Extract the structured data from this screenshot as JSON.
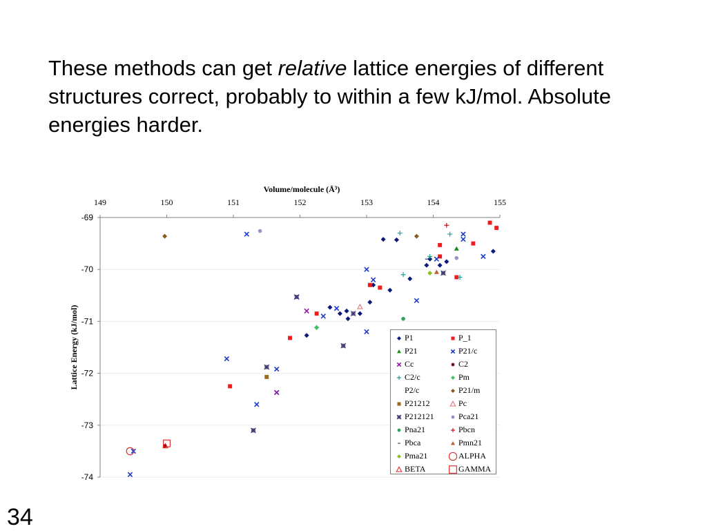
{
  "slide": {
    "text_before": "These methods can get ",
    "text_italic": "relative",
    "text_after": " lattice energies of different structures correct, probably to within a few kJ/mol. Absolute energies harder.",
    "page_number": "34"
  },
  "chart_data": {
    "type": "scatter",
    "title": "",
    "xlabel": "Volume/molecule (Å³)",
    "ylabel": "Lattice Energy (kJ/mol)",
    "xlim": [
      149,
      155
    ],
    "ylim": [
      -74,
      -69
    ],
    "x_ticks": [
      "149",
      "150",
      "151",
      "152",
      "153",
      "154",
      "155"
    ],
    "y_ticks": [
      "-69",
      "-70",
      "-71",
      "-72",
      "-73",
      "-74"
    ],
    "x_axis_position": "top",
    "grid": "horizontal",
    "legend_position": "bottom-right",
    "series": [
      {
        "name": "P1",
        "marker": "diamond",
        "color": "#0a1a7a",
        "points": [
          [
            153.25,
            -69.42
          ],
          [
            153.45,
            -69.43
          ],
          [
            152.1,
            -71.27
          ],
          [
            152.45,
            -70.73
          ],
          [
            152.6,
            -70.85
          ],
          [
            152.7,
            -70.8
          ],
          [
            152.72,
            -70.95
          ],
          [
            153.05,
            -70.63
          ],
          [
            153.35,
            -70.4
          ],
          [
            153.65,
            -70.18
          ],
          [
            153.95,
            -69.8
          ],
          [
            153.9,
            -69.92
          ],
          [
            154.1,
            -69.92
          ],
          [
            154.2,
            -69.85
          ],
          [
            154.9,
            -69.65
          ],
          [
            152.9,
            -70.85
          ],
          [
            153.1,
            -70.3
          ]
        ]
      },
      {
        "name": "P_1",
        "marker": "square",
        "color": "#ee1c1c",
        "points": [
          [
            154.85,
            -69.1
          ],
          [
            154.95,
            -69.2
          ],
          [
            154.6,
            -69.5
          ],
          [
            154.1,
            -69.53
          ],
          [
            154.1,
            -69.75
          ],
          [
            153.05,
            -70.3
          ],
          [
            153.2,
            -70.35
          ],
          [
            152.25,
            -70.85
          ],
          [
            151.85,
            -71.32
          ],
          [
            150.95,
            -72.25
          ],
          [
            154.35,
            -70.15
          ]
        ]
      },
      {
        "name": "P21",
        "marker": "triangle",
        "color": "#1a8a1a",
        "points": [
          [
            154.35,
            -69.6
          ]
        ]
      },
      {
        "name": "P21/c",
        "marker": "x",
        "color": "#1a3acb",
        "points": [
          [
            153.0,
            -70.0
          ],
          [
            153.1,
            -70.2
          ],
          [
            154.05,
            -69.8
          ],
          [
            154.45,
            -69.32
          ],
          [
            154.45,
            -69.42
          ],
          [
            154.75,
            -69.75
          ],
          [
            152.35,
            -70.9
          ],
          [
            152.55,
            -70.75
          ],
          [
            153.0,
            -71.2
          ],
          [
            153.75,
            -70.6
          ],
          [
            151.2,
            -69.32
          ],
          [
            150.9,
            -71.72
          ],
          [
            151.65,
            -71.92
          ],
          [
            151.35,
            -72.6
          ],
          [
            151.65,
            -72.37
          ],
          [
            149.45,
            -73.95
          ],
          [
            149.5,
            -73.5
          ]
        ]
      },
      {
        "name": "Cc",
        "marker": "x",
        "color": "#8a1a9a",
        "points": [
          [
            151.95,
            -70.53
          ],
          [
            152.1,
            -70.8
          ],
          [
            151.65,
            -72.37
          ]
        ]
      },
      {
        "name": "C2",
        "marker": "circle",
        "color": "#6a1010",
        "points": [
          [
            149.97,
            -73.4
          ]
        ]
      },
      {
        "name": "C2/c",
        "marker": "plus",
        "color": "#20a090",
        "points": [
          [
            153.5,
            -69.3
          ],
          [
            154.25,
            -69.32
          ],
          [
            154.4,
            -70.15
          ],
          [
            153.55,
            -70.1
          ],
          [
            153.95,
            -69.75
          ],
          [
            152.25,
            -71.12
          ]
        ]
      },
      {
        "name": "Pm",
        "marker": "diamond",
        "color": "#40c060",
        "points": [
          [
            152.25,
            -71.12
          ]
        ]
      },
      {
        "name": "P2/c",
        "marker": "none",
        "color": "#ffffff",
        "points": []
      },
      {
        "name": "P21/m",
        "marker": "diamond",
        "color": "#8a5a20",
        "points": [
          [
            149.97,
            -69.36
          ],
          [
            153.75,
            -69.36
          ]
        ]
      },
      {
        "name": "P21212",
        "marker": "square",
        "color": "#9a6a20",
        "points": [
          [
            151.5,
            -72.07
          ]
        ]
      },
      {
        "name": "Pc",
        "marker": "triangle-open",
        "color": "#d07070",
        "points": [
          [
            152.9,
            -70.72
          ]
        ]
      },
      {
        "name": "P212121",
        "marker": "square-x",
        "color": "#7a5a6a",
        "points": [
          [
            152.65,
            -71.47
          ],
          [
            151.3,
            -73.1
          ],
          [
            152.8,
            -70.85
          ],
          [
            151.5,
            -71.88
          ],
          [
            151.95,
            -70.53
          ],
          [
            154.15,
            -70.07
          ]
        ]
      },
      {
        "name": "Pca21",
        "marker": "circle",
        "color": "#a090c8",
        "points": [
          [
            151.4,
            -69.26
          ],
          [
            154.35,
            -69.78
          ]
        ]
      },
      {
        "name": "Pna21",
        "marker": "circle",
        "color": "#30a060",
        "points": [
          [
            153.55,
            -70.95
          ]
        ]
      },
      {
        "name": "Pbcn",
        "marker": "plus",
        "color": "#d01010",
        "points": [
          [
            154.2,
            -69.15
          ]
        ]
      },
      {
        "name": "Pbca",
        "marker": "dash",
        "color": "#304060",
        "points": [
          [
            153.9,
            -69.8
          ]
        ]
      },
      {
        "name": "Pmn21",
        "marker": "triangle",
        "color": "#c06030",
        "points": [
          [
            154.05,
            -70.05
          ]
        ]
      },
      {
        "name": "Pma21",
        "marker": "diamond",
        "color": "#90c020",
        "points": [
          [
            153.95,
            -70.07
          ]
        ]
      },
      {
        "name": "ALPHA",
        "marker": "circle-open",
        "color": "#e02020",
        "points": [
          [
            149.45,
            -73.5
          ]
        ]
      },
      {
        "name": "BETA",
        "marker": "triangle-open",
        "color": "#e02020",
        "points": [
          [
            149.98,
            -73.4
          ]
        ]
      },
      {
        "name": "GAMMA",
        "marker": "square-open",
        "color": "#e02020",
        "points": [
          [
            150.0,
            -73.35
          ]
        ]
      }
    ]
  }
}
